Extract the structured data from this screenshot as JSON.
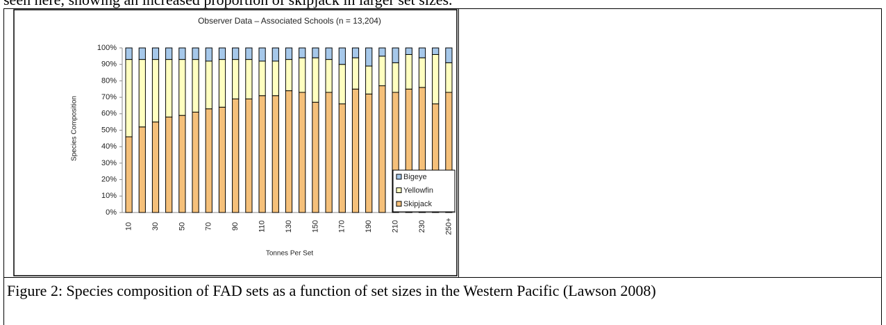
{
  "text_top": "seen here, showing an increased proportion of skipjack in larger set sizes.",
  "chart_data": {
    "type": "stacked_bar",
    "title": "Observer Data – Associated Schools (n = 13,204)",
    "x_label": "Tonnes Per Set",
    "y_label": "Species Composition",
    "categories": [
      "10",
      null,
      "30",
      null,
      "50",
      null,
      "70",
      null,
      "90",
      null,
      "110",
      null,
      "130",
      null,
      "150",
      null,
      "170",
      null,
      "190",
      null,
      "210",
      null,
      "230",
      null,
      "250+"
    ],
    "series": [
      {
        "name": "Skipjack",
        "color": "#f5c07a",
        "values": [
          46,
          52,
          55,
          58,
          59,
          61,
          63,
          64,
          69,
          69,
          71,
          71,
          74,
          73,
          67,
          73,
          66,
          75,
          72,
          77,
          73,
          75,
          76,
          66,
          73
        ]
      },
      {
        "name": "Yellowfin",
        "color": "#ffffc0",
        "values": [
          47,
          41,
          38,
          35,
          34,
          32,
          29,
          29,
          24,
          24,
          21,
          21,
          19,
          21,
          27,
          20,
          24,
          19,
          17,
          18,
          18,
          21,
          18,
          30,
          18
        ]
      },
      {
        "name": "Bigeye",
        "color": "#a6c8ea",
        "values": [
          7,
          7,
          7,
          7,
          7,
          7,
          8,
          7,
          7,
          7,
          8,
          8,
          7,
          6,
          6,
          7,
          10,
          6,
          11,
          5,
          9,
          4,
          6,
          4,
          9
        ]
      }
    ],
    "ylim": [
      0,
      100
    ],
    "yticks": [
      {
        "value": 0,
        "label": "0%"
      },
      {
        "value": 10,
        "label": "10%"
      },
      {
        "value": 20,
        "label": "20%"
      },
      {
        "value": 30,
        "label": "30%"
      },
      {
        "value": 40,
        "label": "40%"
      },
      {
        "value": 50,
        "label": "50%"
      },
      {
        "value": 60,
        "label": "60%"
      },
      {
        "value": 70,
        "label": "70%"
      },
      {
        "value": 80,
        "label": "80%"
      },
      {
        "value": 90,
        "label": "90%"
      },
      {
        "value": 100,
        "label": "100%"
      }
    ],
    "legend": "bottom-right"
  },
  "caption": "Figure 2: Species composition of FAD sets as a function of set sizes in the Western Pacific (Lawson 2008)"
}
